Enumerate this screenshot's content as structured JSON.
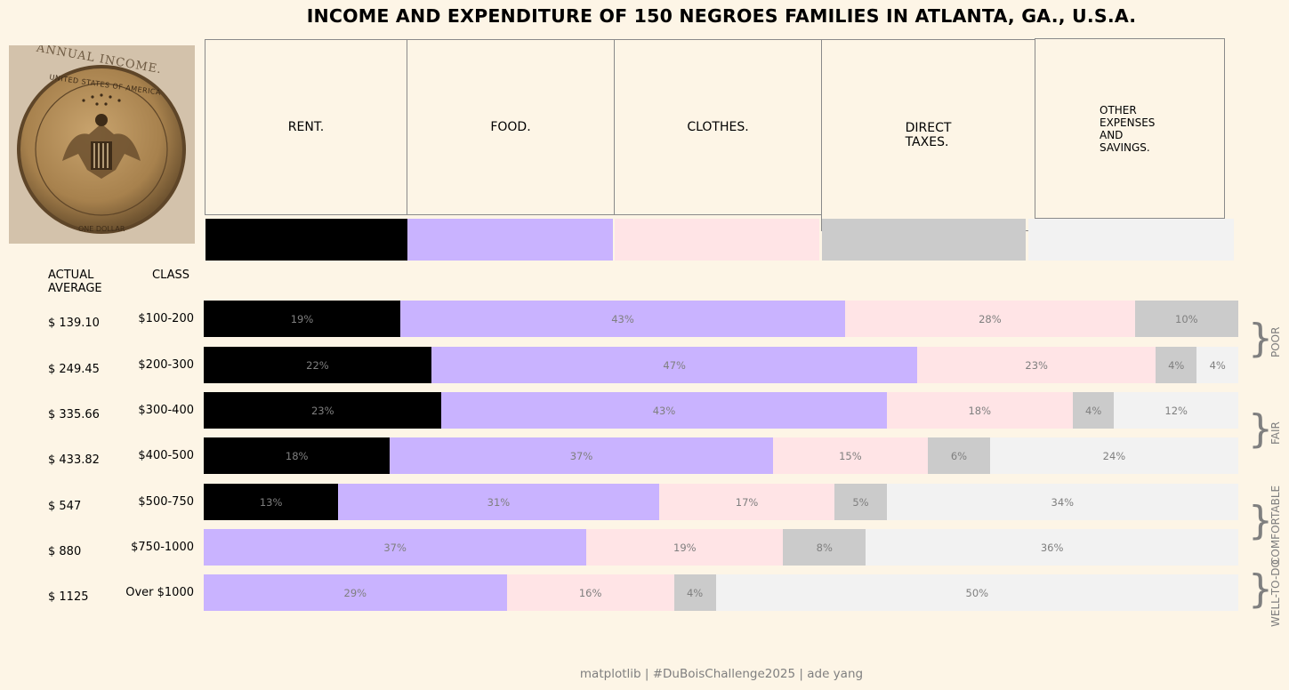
{
  "title": "INCOME AND EXPENDITURE OF 150 NEGROES FAMILIES IN ATLANTA, GA., U.S.A.",
  "coin": {
    "top_text": "ANNUAL INCOME.",
    "ring_text": "UNITED STATES OF AMERICA",
    "bottom_text": "ONE DOLLAR",
    "icon": "dollar-coin-eagle-icon"
  },
  "headers": {
    "actual_average": "ACTUAL\nAVERAGE",
    "class": "CLASS"
  },
  "colors": {
    "rent": "#000000",
    "food": "#c9b3ff",
    "clothes": "#ffe4e6",
    "taxes": "#cbcbcb",
    "other": "#f2f2f2",
    "background": "#fdf5e6",
    "label": "#7f7f7f"
  },
  "credit": "matplotlib | #DuBoisChallenge2025 | ade yang",
  "chart_data": {
    "type": "bar",
    "orientation": "horizontal",
    "stacked": true,
    "categories_header": [
      {
        "key": "rent",
        "label": "RENT."
      },
      {
        "key": "food",
        "label": "FOOD."
      },
      {
        "key": "clothes",
        "label": "CLOTHES."
      },
      {
        "key": "taxes",
        "label": "DIRECT\nTAXES."
      },
      {
        "key": "other",
        "label": "OTHER\nEXPENSES\nAND\nSAVINGS."
      }
    ],
    "rows": [
      {
        "class": "$100-200",
        "average": "$ 139.10",
        "values": [
          19,
          43,
          28,
          10,
          0
        ]
      },
      {
        "class": "$200-300",
        "average": "$ 249.45",
        "values": [
          22,
          47,
          23,
          4,
          4
        ]
      },
      {
        "class": "$300-400",
        "average": "$ 335.66",
        "values": [
          23,
          43,
          18,
          4,
          12
        ]
      },
      {
        "class": "$400-500",
        "average": "$ 433.82",
        "values": [
          18,
          37,
          15,
          6,
          24
        ]
      },
      {
        "class": "$500-750",
        "average": "$ 547",
        "values": [
          13,
          31,
          17,
          5,
          34
        ]
      },
      {
        "class": "$750-1000",
        "average": "$ 880",
        "values": [
          0,
          37,
          19,
          8,
          36
        ]
      },
      {
        "class": "Over $1000",
        "average": "$ 1125",
        "values": [
          0,
          29,
          16,
          4,
          50
        ]
      }
    ],
    "value_suffix": "%",
    "groups": [
      {
        "label": "POOR",
        "rows": [
          0,
          1
        ]
      },
      {
        "label": "FAIR",
        "rows": [
          2,
          3
        ]
      },
      {
        "label": "COMFORTABLE",
        "rows": [
          4,
          5
        ]
      },
      {
        "label": "WELL-TO-DO",
        "rows": [
          6
        ]
      }
    ],
    "xlim": [
      0,
      100
    ],
    "grid": false,
    "legend": "top"
  }
}
